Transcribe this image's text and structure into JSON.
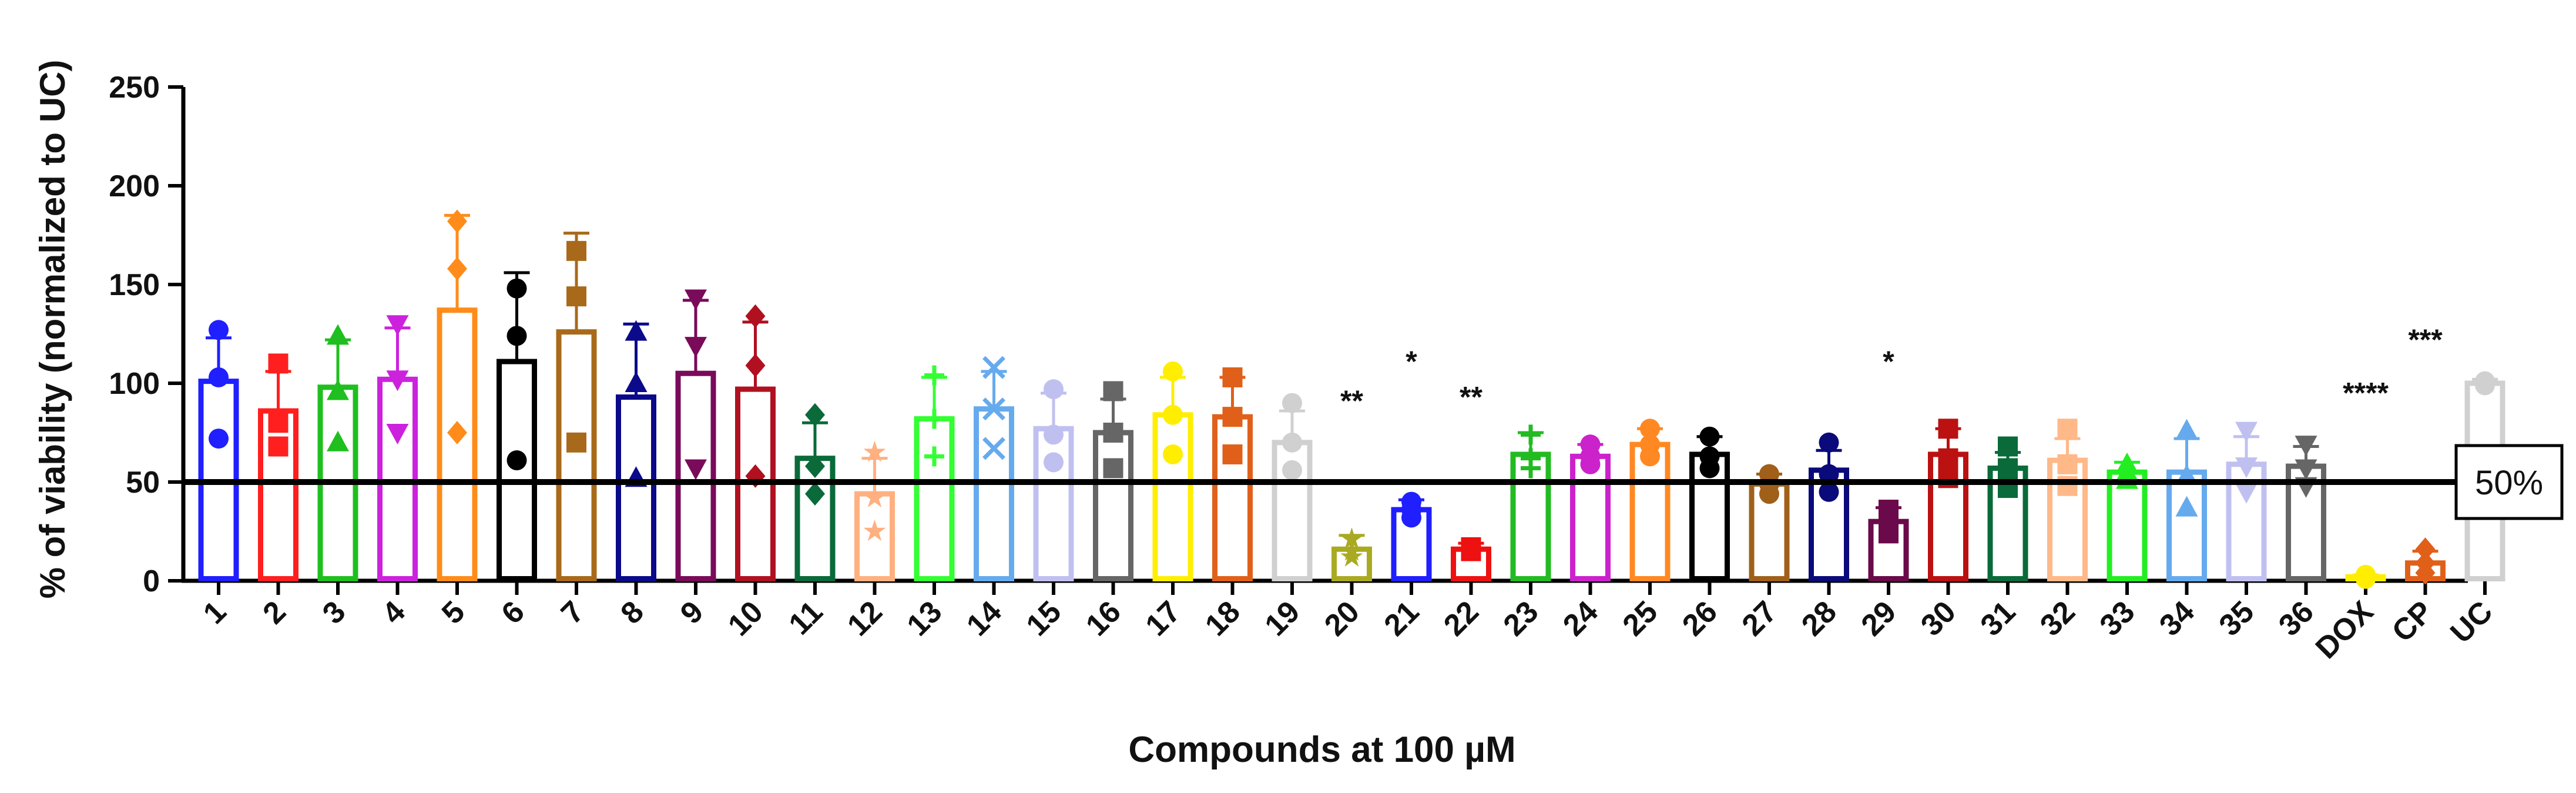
{
  "chart_data": {
    "type": "bar",
    "ylabel": "% of viability (normalized to UC)",
    "xlabel": "Compounds at 100 µM",
    "ylim": [
      0,
      250
    ],
    "yticks": [
      0,
      50,
      100,
      150,
      200,
      250
    ],
    "grid": false,
    "threshold": {
      "value": 50,
      "label": "50%"
    },
    "categories": [
      "1",
      "2",
      "3",
      "4",
      "5",
      "6",
      "7",
      "8",
      "9",
      "10",
      "11",
      "12",
      "13",
      "14",
      "15",
      "16",
      "17",
      "18",
      "19",
      "20",
      "21",
      "22",
      "23",
      "24",
      "25",
      "26",
      "27",
      "28",
      "29",
      "30",
      "31",
      "32",
      "33",
      "34",
      "35",
      "36",
      "DOX",
      "CP",
      "UC"
    ],
    "values": [
      101,
      86,
      98,
      102,
      137,
      111,
      126,
      93,
      105,
      97,
      62,
      44,
      82,
      87,
      77,
      75,
      84,
      83,
      70,
      16,
      36,
      16,
      64,
      63,
      69,
      64,
      49,
      56,
      30,
      64,
      57,
      61,
      55,
      55,
      59,
      58,
      2,
      9,
      100
    ],
    "errors": [
      22,
      20,
      24,
      26,
      48,
      45,
      50,
      37,
      37,
      34,
      18,
      18,
      21,
      19,
      18,
      17,
      19,
      20,
      16,
      7,
      5,
      3,
      11,
      6,
      8,
      9,
      5,
      10,
      7,
      13,
      8,
      11,
      5,
      17,
      14,
      10,
      1,
      6,
      2
    ],
    "points": [
      [
        127,
        103,
        72
      ],
      [
        110,
        80,
        68
      ],
      [
        124,
        96,
        70
      ],
      [
        130,
        102,
        75
      ],
      [
        182,
        158,
        75
      ],
      [
        148,
        124,
        61
      ],
      [
        167,
        144,
        70
      ],
      [
        126,
        100,
        52
      ],
      [
        143,
        119,
        57
      ],
      [
        134,
        109,
        53
      ],
      [
        84,
        58,
        44
      ],
      [
        65,
        42,
        25
      ],
      [
        104,
        82,
        63
      ],
      [
        108,
        87,
        67
      ],
      [
        97,
        74,
        60
      ],
      [
        96,
        75,
        57
      ],
      [
        106,
        84,
        64
      ],
      [
        103,
        83,
        64
      ],
      [
        90,
        70,
        56
      ],
      [
        21,
        15,
        12
      ],
      [
        40,
        36,
        32
      ],
      [
        17,
        16,
        15
      ],
      [
        74,
        62,
        57
      ],
      [
        69,
        63,
        59
      ],
      [
        77,
        69,
        63
      ],
      [
        73,
        63,
        57
      ],
      [
        54,
        49,
        44
      ],
      [
        70,
        54,
        45
      ],
      [
        36,
        30,
        24
      ],
      [
        77,
        62,
        52
      ],
      [
        68,
        57,
        47
      ],
      [
        77,
        59,
        48
      ],
      [
        59,
        55,
        51
      ],
      [
        76,
        53,
        37
      ],
      [
        76,
        58,
        45
      ],
      [
        69,
        57,
        48
      ],
      [
        3,
        2,
        1
      ],
      [
        16,
        9,
        4
      ],
      [
        101,
        100,
        99
      ]
    ],
    "significance": [
      {
        "category": "20",
        "label": "**",
        "y": 86
      },
      {
        "category": "21",
        "label": "*",
        "y": 106
      },
      {
        "category": "22",
        "label": "**",
        "y": 88
      },
      {
        "category": "29",
        "label": "*",
        "y": 106
      },
      {
        "category": "DOX",
        "label": "****",
        "y": 90
      },
      {
        "category": "CP",
        "label": "***",
        "y": 117
      }
    ],
    "colors": [
      "#1f1fff",
      "#ff1f1f",
      "#1fbf1f",
      "#cc22dd",
      "#ff8c1a",
      "#000000",
      "#a86a1a",
      "#0a0a8a",
      "#7a0a5a",
      "#b01020",
      "#0a6a3a",
      "#ffb080",
      "#33ff33",
      "#66aaee",
      "#c0c0f0",
      "#666666",
      "#ffee00",
      "#e0601a",
      "#d0d0d0",
      "#aaaa22",
      "#1f1fff",
      "#ee1111",
      "#22bb22",
      "#cc22cc",
      "#ff8822",
      "#000000",
      "#a0601a",
      "#0a0a7a",
      "#6a0a4a",
      "#bb1111",
      "#0a6a3a",
      "#ffb888",
      "#22ee22",
      "#66aaee",
      "#c0c0f0",
      "#666666",
      "#ffee00",
      "#e0601a",
      "#d0d0d0"
    ],
    "markers": [
      "circle",
      "square",
      "triangle",
      "tri-down",
      "diamond",
      "circle",
      "square",
      "triangle",
      "tri-down",
      "diamond",
      "diamond",
      "star",
      "plus",
      "cross",
      "circle",
      "square",
      "circle",
      "square",
      "circle",
      "star",
      "circle",
      "square",
      "plus",
      "circle",
      "circle",
      "circle",
      "circle",
      "circle",
      "square",
      "square",
      "square",
      "square",
      "triangle",
      "triangle",
      "tri-down",
      "tri-down",
      "circle",
      "diamond",
      "circle"
    ]
  }
}
